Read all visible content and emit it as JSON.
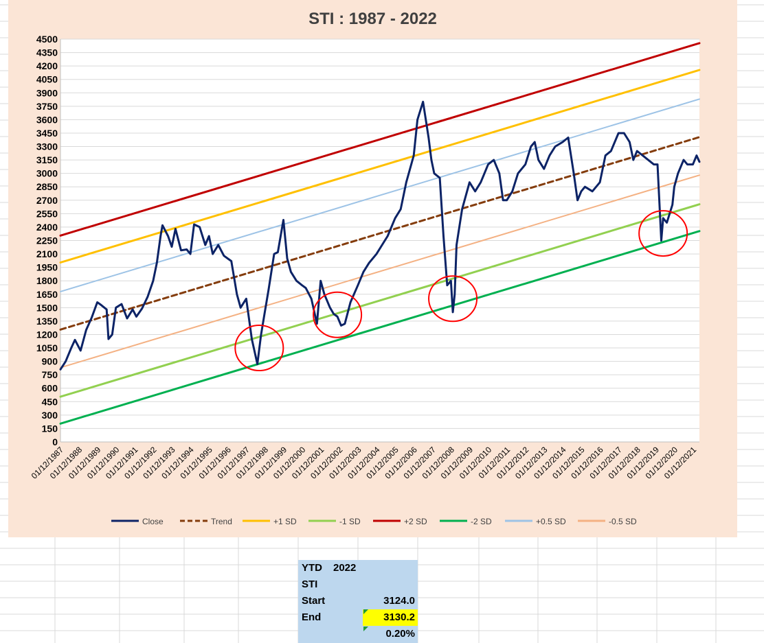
{
  "chart_data": {
    "type": "line",
    "title": "STI  : 1987 - 2022",
    "ylim": [
      0,
      4500
    ],
    "y_ticks": [
      0,
      150,
      300,
      450,
      600,
      750,
      900,
      1050,
      1200,
      1350,
      1500,
      1650,
      1800,
      1950,
      2100,
      2250,
      2400,
      2550,
      2700,
      2850,
      3000,
      3150,
      3300,
      3450,
      3600,
      3750,
      3900,
      4050,
      4200,
      4350,
      4500
    ],
    "x_ticks": [
      "01/12/1987",
      "01/12/1988",
      "01/12/1989",
      "01/12/1990",
      "01/12/1991",
      "01/12/1992",
      "01/12/1993",
      "01/12/1994",
      "01/12/1995",
      "01/12/1996",
      "01/12/1997",
      "01/12/1998",
      "01/12/1999",
      "01/12/2000",
      "01/12/2001",
      "01/12/2002",
      "01/12/2003",
      "01/12/2004",
      "01/12/2005",
      "01/12/2006",
      "01/12/2007",
      "01/12/2008",
      "01/12/2009",
      "01/12/2010",
      "01/12/2011",
      "01/12/2012",
      "01/12/2013",
      "01/12/2014",
      "01/12/2015",
      "01/12/2016",
      "01/12/2017",
      "01/12/2018",
      "01/12/2019",
      "01/12/2020",
      "01/12/2021"
    ],
    "x_start": 1987.92,
    "x_end": 2022.25,
    "grid": "horizontal",
    "legend_position": "bottom",
    "series": [
      {
        "name": "Close",
        "color": "#0c2366",
        "style": "solid",
        "x": [
          1987.92,
          1988.2,
          1988.5,
          1988.7,
          1989.0,
          1989.3,
          1989.6,
          1989.9,
          1990.1,
          1990.4,
          1990.5,
          1990.7,
          1990.9,
          1991.2,
          1991.5,
          1991.8,
          1992.0,
          1992.3,
          1992.6,
          1992.9,
          1993.1,
          1993.3,
          1993.4,
          1993.7,
          1993.9,
          1994.1,
          1994.4,
          1994.7,
          1994.9,
          1995.1,
          1995.4,
          1995.7,
          1995.9,
          1996.1,
          1996.4,
          1996.7,
          1996.9,
          1997.1,
          1997.4,
          1997.6,
          1997.9,
          1998.0,
          1998.2,
          1998.5,
          1998.7,
          1998.9,
          1999.1,
          1999.4,
          1999.6,
          1999.9,
          2000.1,
          2000.3,
          2000.6,
          2000.9,
          2001.1,
          2001.4,
          2001.7,
          2001.9,
          2002.1,
          2002.4,
          2002.6,
          2002.8,
          2003.0,
          2003.2,
          2003.5,
          2003.9,
          2004.2,
          2004.5,
          2004.9,
          2005.2,
          2005.5,
          2005.9,
          2006.2,
          2006.5,
          2006.9,
          2007.1,
          2007.4,
          2007.7,
          2007.85,
          2008.0,
          2008.3,
          2008.5,
          2008.7,
          2008.9,
          2009.0,
          2009.1,
          2009.2,
          2009.5,
          2009.9,
          2010.2,
          2010.5,
          2010.9,
          2011.2,
          2011.5,
          2011.7,
          2011.9,
          2012.2,
          2012.5,
          2012.9,
          2013.2,
          2013.4,
          2013.6,
          2013.9,
          2014.2,
          2014.5,
          2014.9,
          2015.2,
          2015.5,
          2015.7,
          2015.9,
          2016.1,
          2016.5,
          2016.9,
          2017.2,
          2017.5,
          2017.9,
          2018.2,
          2018.5,
          2018.7,
          2018.9,
          2019.2,
          2019.5,
          2019.8,
          2020.0,
          2020.2,
          2020.3,
          2020.5,
          2020.8,
          2020.9,
          2021.1,
          2021.4,
          2021.6,
          2021.9,
          2022.1,
          2022.25
        ],
        "values": [
          810,
          900,
          1050,
          1140,
          1020,
          1250,
          1390,
          1560,
          1530,
          1480,
          1150,
          1200,
          1500,
          1540,
          1380,
          1480,
          1400,
          1490,
          1620,
          1800,
          2000,
          2300,
          2420,
          2300,
          2180,
          2380,
          2140,
          2150,
          2100,
          2430,
          2400,
          2200,
          2300,
          2100,
          2200,
          2080,
          2050,
          2020,
          1650,
          1500,
          1600,
          1450,
          1150,
          870,
          1200,
          1450,
          1700,
          2100,
          2120,
          2480,
          2050,
          1900,
          1800,
          1750,
          1720,
          1600,
          1320,
          1800,
          1650,
          1500,
          1430,
          1400,
          1300,
          1320,
          1560,
          1750,
          1900,
          2000,
          2100,
          2200,
          2300,
          2500,
          2600,
          2900,
          3200,
          3600,
          3800,
          3400,
          3150,
          3000,
          2950,
          2300,
          1750,
          1800,
          1450,
          1650,
          2200,
          2600,
          2900,
          2800,
          2900,
          3100,
          3150,
          3000,
          2700,
          2700,
          2800,
          3000,
          3100,
          3300,
          3350,
          3150,
          3050,
          3200,
          3300,
          3350,
          3400,
          3000,
          2700,
          2800,
          2850,
          2800,
          2900,
          3200,
          3250,
          3450,
          3450,
          3350,
          3150,
          3250,
          3200,
          3150,
          3100,
          3100,
          2250,
          2500,
          2450,
          2650,
          2850,
          3000,
          3150,
          3100,
          3100,
          3200,
          3130
        ]
      },
      {
        "name": "Trend",
        "color": "#843c0c",
        "style": "dashed",
        "x": [
          1987.92,
          2022.25
        ],
        "values": [
          1255,
          3405
        ]
      },
      {
        "name": "+1 SD",
        "color": "#ffc000",
        "style": "solid",
        "x": [
          1987.92,
          2022.25
        ],
        "values": [
          2005,
          4155
        ]
      },
      {
        "name": "-1 SD",
        "color": "#92d050",
        "style": "solid",
        "x": [
          1987.92,
          2022.25
        ],
        "values": [
          505,
          2655
        ]
      },
      {
        "name": "+2 SD",
        "color": "#c00000",
        "style": "solid",
        "x": [
          1987.92,
          2022.25
        ],
        "values": [
          2305,
          4455
        ]
      },
      {
        "name": "-2 SD",
        "color": "#00b050",
        "style": "solid",
        "x": [
          1987.92,
          2022.25
        ],
        "values": [
          205,
          2355
        ]
      },
      {
        "name": "+0.5 SD",
        "color": "#9dc3e6",
        "style": "solid",
        "x": [
          1987.92,
          2022.25
        ],
        "values": [
          1680,
          3830
        ]
      },
      {
        "name": "-0.5 SD",
        "color": "#f4b183",
        "style": "solid",
        "x": [
          1987.92,
          2022.25
        ],
        "values": [
          830,
          2980
        ]
      }
    ],
    "annotations": [
      {
        "type": "circle",
        "color": "#ff0000",
        "x": 1998.6,
        "y": 1050
      },
      {
        "type": "circle",
        "color": "#ff0000",
        "x": 2002.8,
        "y": 1420
      },
      {
        "type": "circle",
        "color": "#ff0000",
        "x": 2009.0,
        "y": 1600
      },
      {
        "type": "circle",
        "color": "#ff0000",
        "x": 2020.3,
        "y": 2330
      }
    ]
  },
  "ytd_table": {
    "header": "YTD",
    "year": "2022",
    "index_name": "STI",
    "start_label": "Start",
    "start_value": "3124.0",
    "end_label": "End",
    "end_value": "3130.2",
    "change": "0.20%"
  }
}
